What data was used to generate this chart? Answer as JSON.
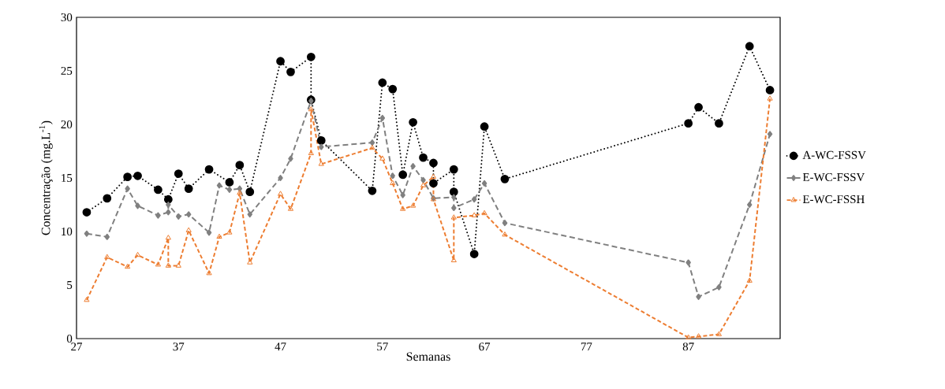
{
  "chart_data": {
    "type": "line",
    "xlabel": "Semanas",
    "ylabel": "Concentração (mg.L$^{-1}$)",
    "xlim": [
      27,
      96
    ],
    "xticks": [
      27,
      37,
      47,
      57,
      67,
      77,
      87
    ],
    "ylim": [
      0,
      30
    ],
    "yticks": [
      0,
      5,
      10,
      15,
      20,
      25,
      30
    ],
    "grid": false,
    "legend": "right",
    "series": [
      {
        "name": "A-WC-FSSV",
        "color": "#000000",
        "marker": "circle",
        "line_style": "dotted",
        "x": [
          28,
          30,
          32,
          33,
          35,
          36,
          37,
          38,
          40,
          42,
          43,
          44,
          47,
          48,
          50,
          50,
          51,
          56,
          57,
          58,
          59,
          60,
          61,
          62,
          62,
          64,
          64,
          66,
          67,
          69,
          87,
          88,
          90,
          93,
          95
        ],
        "values": [
          11.8,
          13.1,
          15.1,
          15.2,
          13.9,
          13.0,
          15.4,
          14.0,
          15.8,
          14.6,
          16.2,
          13.7,
          25.9,
          24.9,
          26.3,
          22.3,
          18.5,
          13.8,
          23.9,
          23.3,
          15.3,
          20.2,
          16.9,
          16.4,
          14.5,
          15.8,
          13.7,
          7.9,
          19.8,
          14.9,
          20.1,
          21.6,
          20.1,
          27.3,
          23.2
        ]
      },
      {
        "name": "E-WC-FSSV",
        "color": "#808080",
        "marker": "diamond",
        "line_style": "dashed",
        "x": [
          28,
          30,
          32,
          33,
          35,
          36,
          36,
          37,
          38,
          40,
          41,
          42,
          43,
          44,
          47,
          48,
          50,
          51,
          56,
          57,
          58,
          59,
          60,
          61,
          62,
          64,
          64,
          66,
          67,
          69,
          87,
          88,
          90,
          93,
          95
        ],
        "values": [
          9.8,
          9.5,
          14.0,
          12.4,
          11.5,
          11.8,
          12.5,
          11.4,
          11.6,
          9.9,
          14.3,
          13.9,
          14.0,
          11.6,
          15.0,
          16.8,
          22.2,
          17.9,
          18.3,
          20.6,
          15.2,
          13.4,
          16.1,
          14.8,
          13.1,
          13.2,
          12.2,
          13.0,
          14.5,
          10.8,
          7.1,
          3.9,
          4.8,
          12.5,
          19.1
        ]
      },
      {
        "name": "E-WC-FSSH",
        "color": "#ed7d31",
        "marker": "triangle",
        "line_style": "dashed",
        "x": [
          28,
          30,
          32,
          33,
          35,
          36,
          36,
          37,
          38,
          40,
          41,
          42,
          43,
          44,
          47,
          48,
          50,
          50,
          51,
          56,
          57,
          58,
          59,
          60,
          61,
          62,
          62,
          64,
          64,
          66,
          67,
          69,
          87,
          88,
          90,
          93,
          95
        ],
        "values": [
          3.6,
          7.6,
          6.7,
          7.8,
          6.9,
          9.4,
          6.8,
          6.8,
          10.1,
          6.1,
          9.5,
          9.9,
          13.6,
          7.1,
          13.5,
          12.1,
          17.3,
          21.4,
          16.3,
          17.8,
          16.8,
          14.5,
          12.1,
          12.4,
          14.3,
          15.1,
          13.0,
          7.3,
          11.3,
          11.5,
          11.7,
          9.7,
          0.1,
          0.2,
          0.4,
          5.4,
          22.4
        ]
      }
    ]
  }
}
